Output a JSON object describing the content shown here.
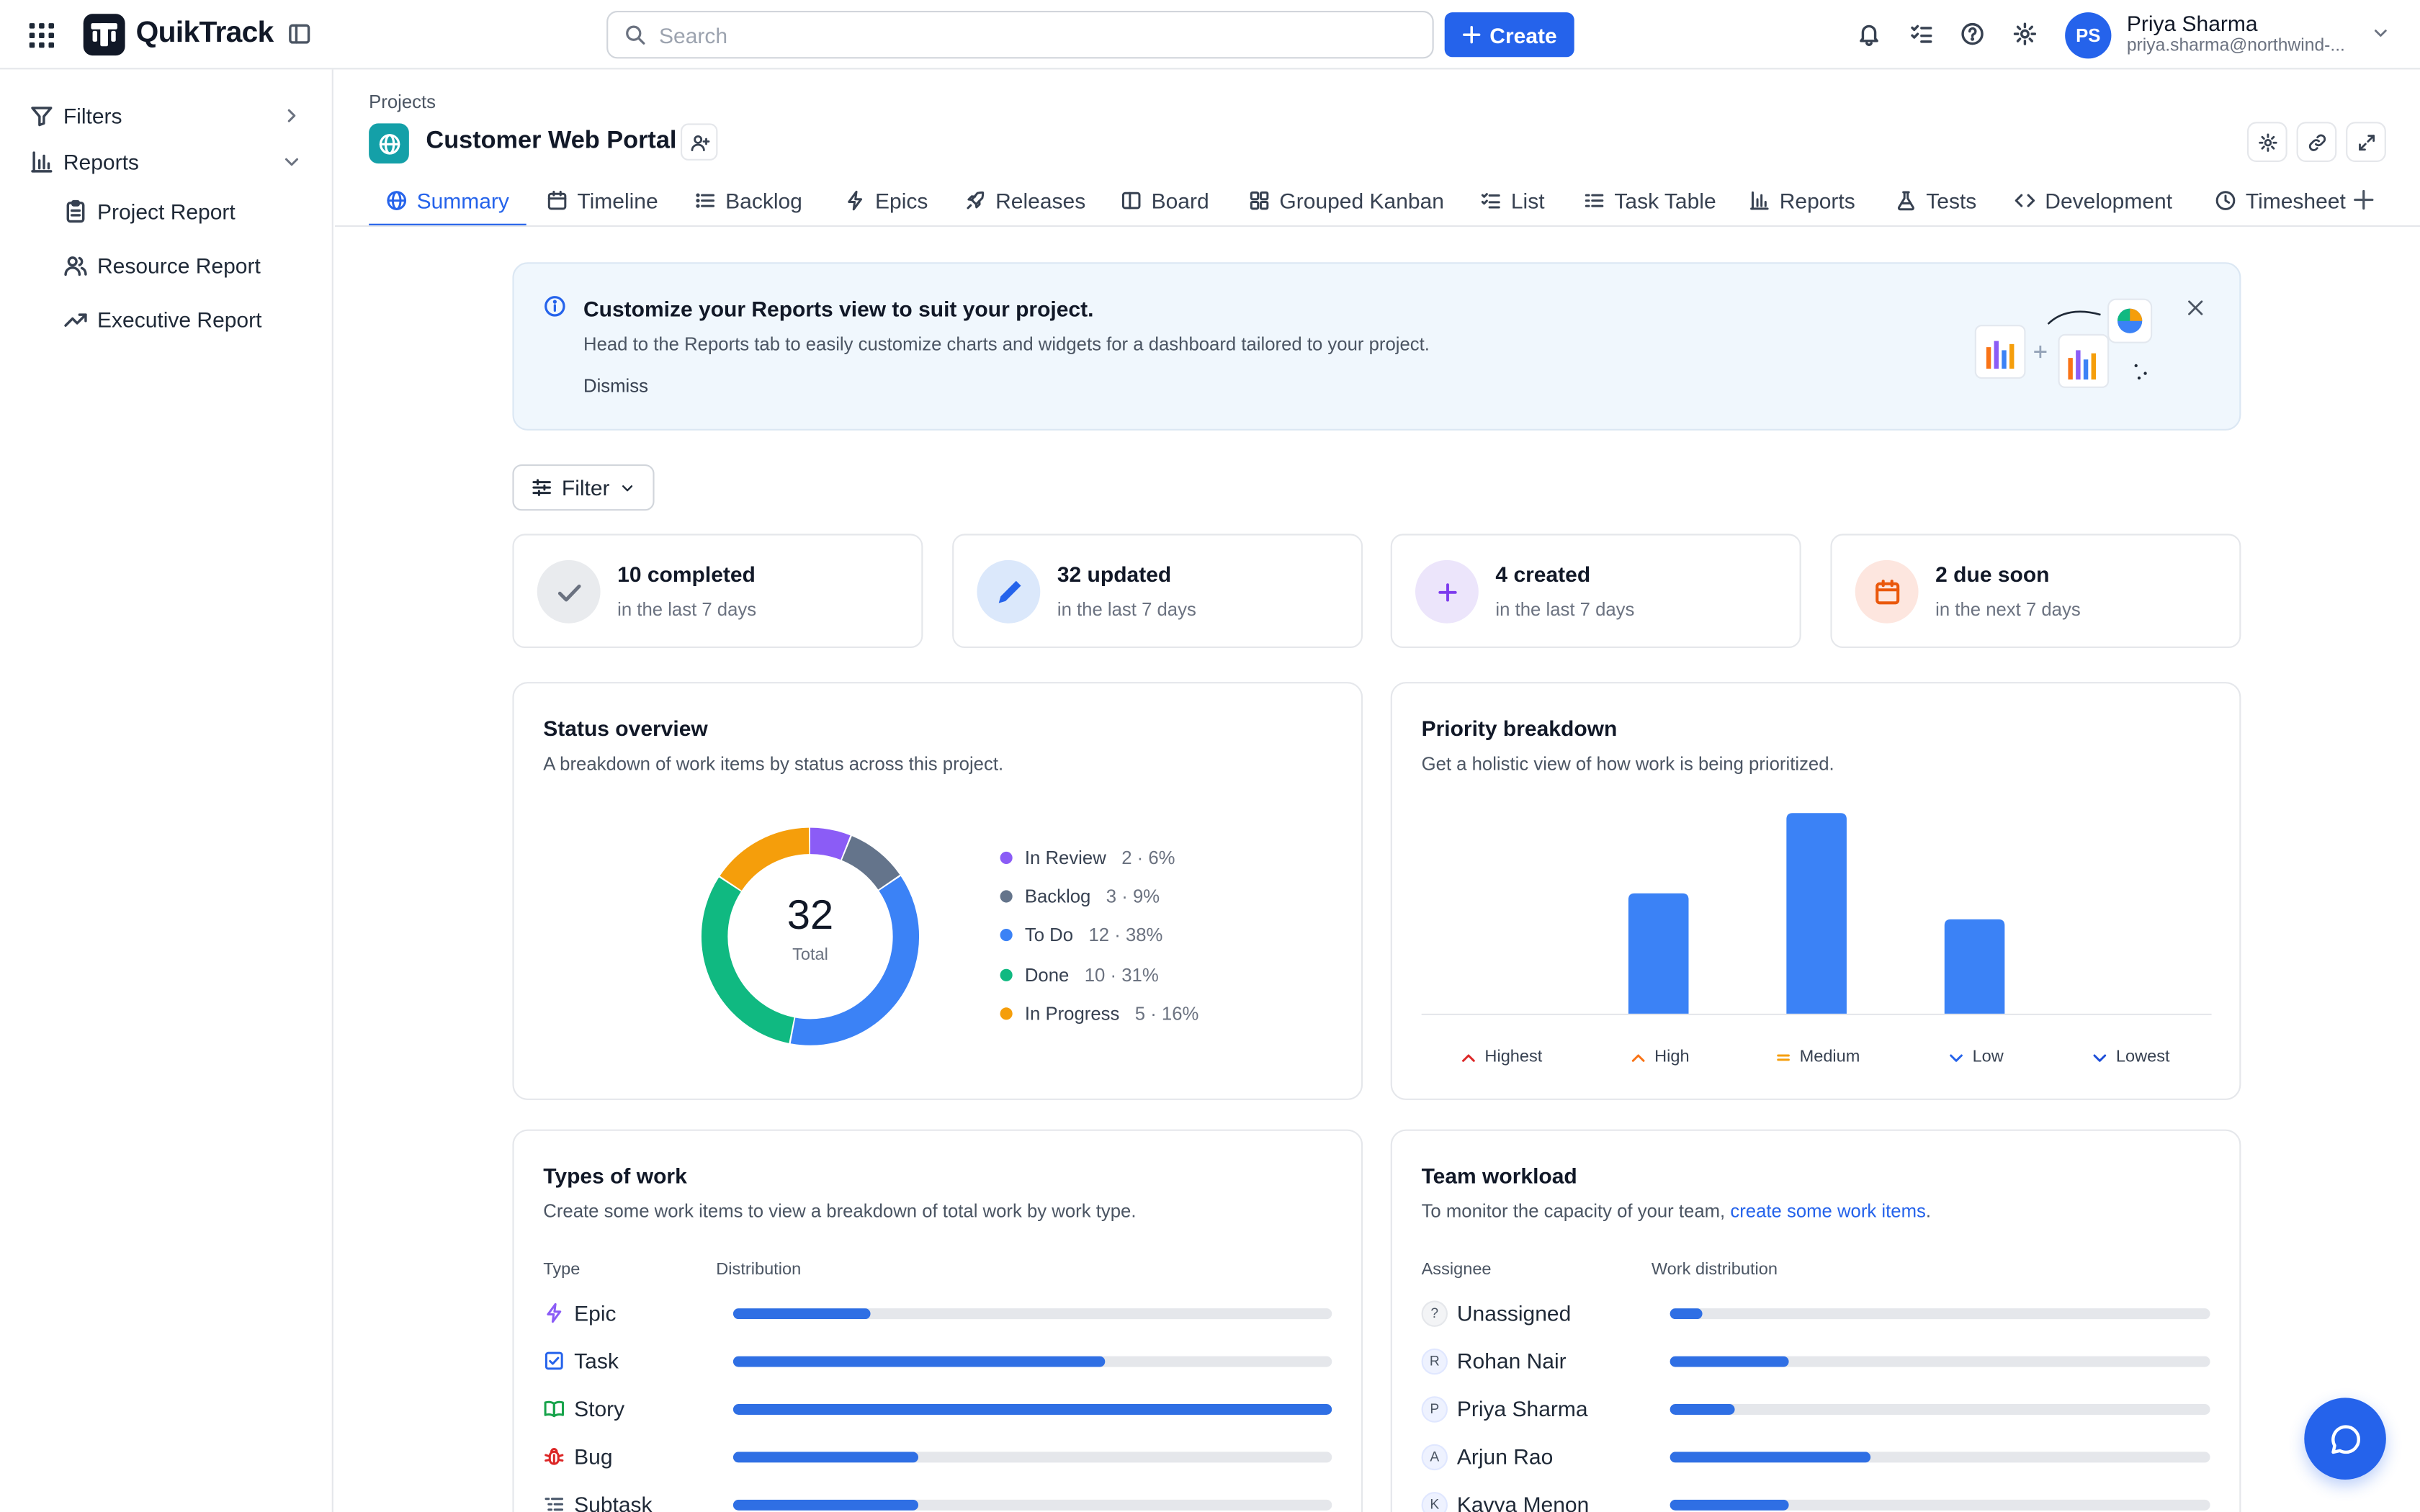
{
  "app": {
    "name": "QuikTrack"
  },
  "search": {
    "placeholder": "Search"
  },
  "create_label": "Create",
  "user": {
    "initials": "PS",
    "name": "Priya Sharma",
    "email": "priya.sharma@northwind-..."
  },
  "sidebar": {
    "filters_label": "Filters",
    "reports_label": "Reports",
    "items": [
      "Project Report",
      "Resource Report",
      "Executive Report"
    ]
  },
  "breadcrumb": "Projects",
  "project_title": "Customer Web Portal",
  "tabs": [
    "Summary",
    "Timeline",
    "Backlog",
    "Epics",
    "Releases",
    "Board",
    "Grouped Kanban",
    "List",
    "Task Table",
    "Reports",
    "Tests",
    "Development",
    "Timesheet"
  ],
  "active_tab": "Summary",
  "banner": {
    "title": "Customize your Reports view to suit your project.",
    "description": "Head to the Reports tab to easily customize charts and widgets for a dashboard tailored to your project.",
    "dismiss": "Dismiss"
  },
  "filter_label": "Filter",
  "stats": [
    {
      "value": "10 completed",
      "sub": "in the last 7 days",
      "icon": "check-icon",
      "color": "#e9ebee"
    },
    {
      "value": "32 updated",
      "sub": "in the last 7 days",
      "icon": "pencil-icon",
      "color": "#dbe8fb"
    },
    {
      "value": "4 created",
      "sub": "in the last 7 days",
      "icon": "plus-icon",
      "color": "#ece5fb"
    },
    {
      "value": "2 due soon",
      "sub": "in the next 7 days",
      "icon": "calendar-icon",
      "color": "#fde6df"
    }
  ],
  "status_overview": {
    "title": "Status overview",
    "description": "A breakdown of work items by status across this project.",
    "total": "32",
    "total_label": "Total",
    "legend": [
      {
        "label": "In Review",
        "meta": "2 · 6%",
        "color": "#8b5cf6"
      },
      {
        "label": "Backlog",
        "meta": "3 · 9%",
        "color": "#64748b"
      },
      {
        "label": "To Do",
        "meta": "12 · 38%",
        "color": "#3b82f6"
      },
      {
        "label": "Done",
        "meta": "10 · 31%",
        "color": "#10b981"
      },
      {
        "label": "In Progress",
        "meta": "5 · 16%",
        "color": "#f59e0b"
      }
    ]
  },
  "priority_breakdown": {
    "title": "Priority breakdown",
    "description": "Get a holistic view of how work is being prioritized.",
    "labels": [
      {
        "label": "Highest",
        "color": "#dc2626"
      },
      {
        "label": "High",
        "color": "#f97316"
      },
      {
        "label": "Medium",
        "color": "#f59e0b"
      },
      {
        "label": "Low",
        "color": "#2563eb"
      },
      {
        "label": "Lowest",
        "color": "#1d4ed8"
      }
    ]
  },
  "chart_data": {
    "type": "bar",
    "categories": [
      "Highest",
      "High",
      "Medium",
      "Low",
      "Lowest"
    ],
    "values": [
      0,
      6,
      10,
      4.7,
      0
    ],
    "title": "Priority breakdown",
    "ylim": [
      0,
      10
    ]
  },
  "types_of_work": {
    "title": "Types of work",
    "description": "Create some work items to view a breakdown of total work by work type.",
    "col_type": "Type",
    "col_distribution": "Distribution",
    "rows": [
      {
        "label": "Epic",
        "fraction": 0.23,
        "icon": "bolt-icon"
      },
      {
        "label": "Task",
        "fraction": 0.62,
        "icon": "checkbox-icon"
      },
      {
        "label": "Story",
        "fraction": 1.0,
        "icon": "book-icon"
      },
      {
        "label": "Bug",
        "fraction": 0.31,
        "icon": "bug-icon"
      },
      {
        "label": "Subtask",
        "fraction": 0.31,
        "icon": "subtask-icon"
      }
    ]
  },
  "team_workload": {
    "title": "Team workload",
    "description": "To monitor the capacity of your team, ",
    "link": "create some work items",
    "link_suffix": ".",
    "col_assignee": "Assignee",
    "col_distribution": "Work distribution",
    "rows": [
      {
        "label": "Unassigned",
        "initial": "?",
        "fraction": 0.06
      },
      {
        "label": "Rohan Nair",
        "initial": "R",
        "fraction": 0.22
      },
      {
        "label": "Priya Sharma",
        "initial": "P",
        "fraction": 0.12
      },
      {
        "label": "Arjun Rao",
        "initial": "A",
        "fraction": 0.37
      },
      {
        "label": "Kavya Menon",
        "initial": "K",
        "fraction": 0.22
      }
    ]
  }
}
